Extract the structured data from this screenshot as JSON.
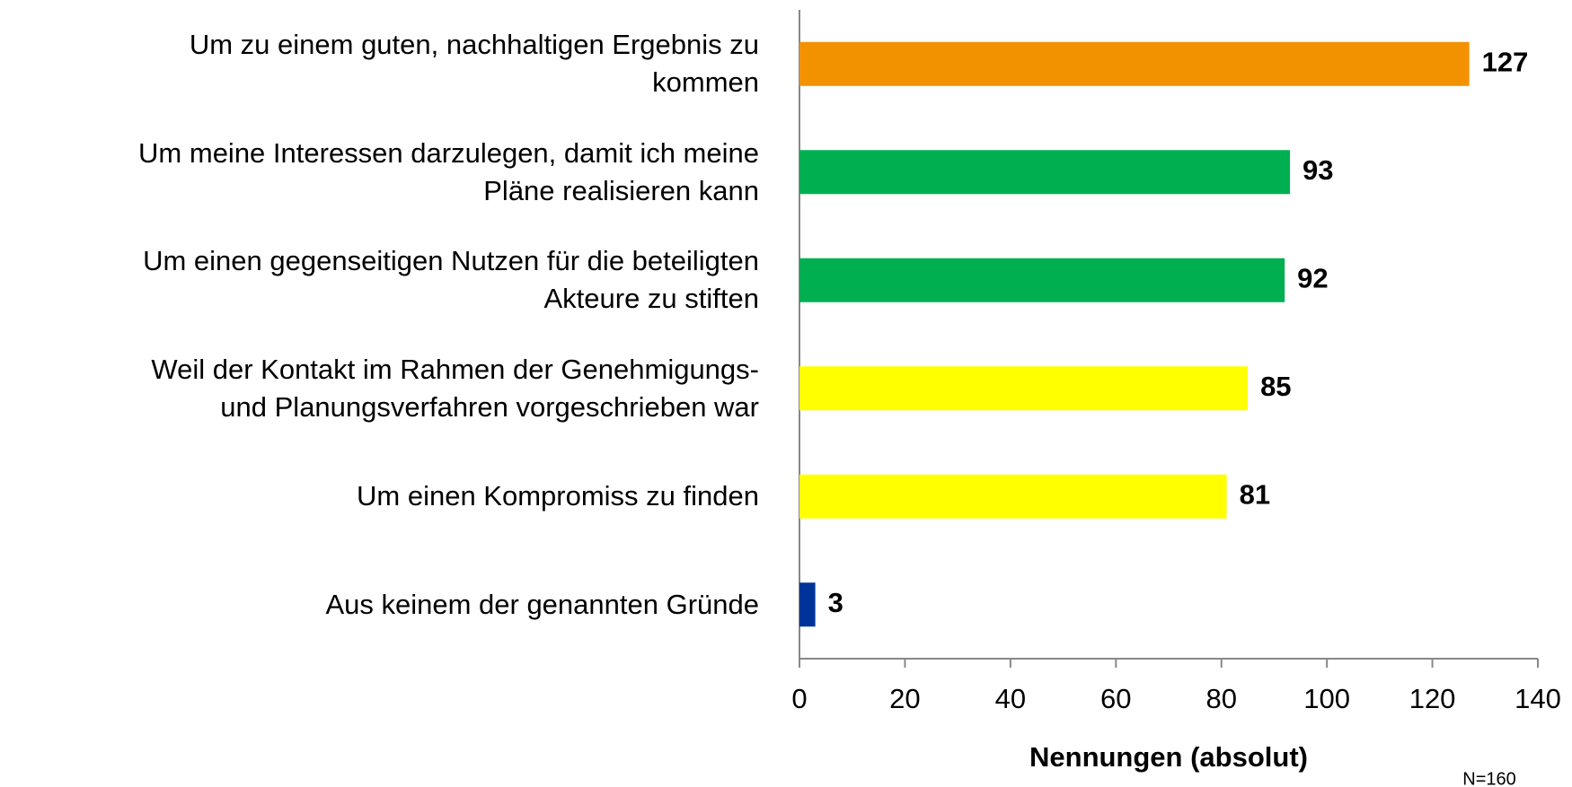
{
  "chart_data": {
    "type": "barh",
    "categories": [
      "Um zu einem guten, nachhaltigen Ergebnis zu\nkommen",
      "Um meine Interessen darzulegen, damit ich meine\nPläne realisieren kann",
      "Um einen gegenseitigen Nutzen für die beteiligten\nAkteure zu stiften",
      "Weil der Kontakt im Rahmen der Genehmigungs-\nund Planungsverfahren vorgeschrieben war",
      "Um einen Kompromiss zu finden",
      "Aus keinem der genannten Gründe"
    ],
    "values": [
      127,
      93,
      92,
      85,
      81,
      3
    ],
    "colors": [
      "#f39200",
      "#00b050",
      "#00b050",
      "#ffff00",
      "#ffff00",
      "#003399"
    ],
    "xlim": [
      0,
      140
    ],
    "xticks": [
      0,
      20,
      40,
      60,
      80,
      100,
      120,
      140
    ],
    "xlabel": "Nennungen (absolut)",
    "annotation": "N=160"
  }
}
